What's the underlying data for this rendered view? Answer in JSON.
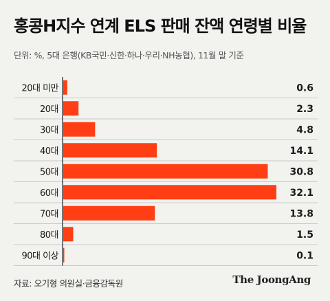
{
  "header": {
    "title": "홍콩H지수 연계 ELS 판매 잔액 연령별 비율",
    "subtitle": "단위: %, 5대 은행(KB국민·신한·하나·우리·NH농협), 11월 말 기준"
  },
  "footer": {
    "source": "자료: 오기형 의원실·금융감독원",
    "brand": "The JoongAng"
  },
  "colors": {
    "bar": "#ff3e14",
    "grid": "#c9c9c4",
    "axis": "#222222"
  },
  "chart_data": {
    "type": "bar",
    "orientation": "horizontal",
    "title": "홍콩H지수 연계 ELS 판매 잔액 연령별 비율",
    "subtitle": "단위: %, 5대 은행(KB국민·신한·하나·우리·NH농협), 11월 말 기준",
    "categories": [
      "20대 미만",
      "20대",
      "30대",
      "40대",
      "50대",
      "60대",
      "70대",
      "80대",
      "90대 이상"
    ],
    "values": [
      0.6,
      2.3,
      4.8,
      14.1,
      30.8,
      32.1,
      13.8,
      1.5,
      0.1
    ],
    "value_labels": [
      "0.6",
      "2.3",
      "4.8",
      "14.1",
      "30.8",
      "32.1",
      "13.8",
      "1.5",
      "0.1"
    ],
    "xlabel": "",
    "ylabel": "",
    "xlim": [
      0,
      32.1
    ],
    "grid": "horizontal row separators",
    "legend": "none"
  }
}
